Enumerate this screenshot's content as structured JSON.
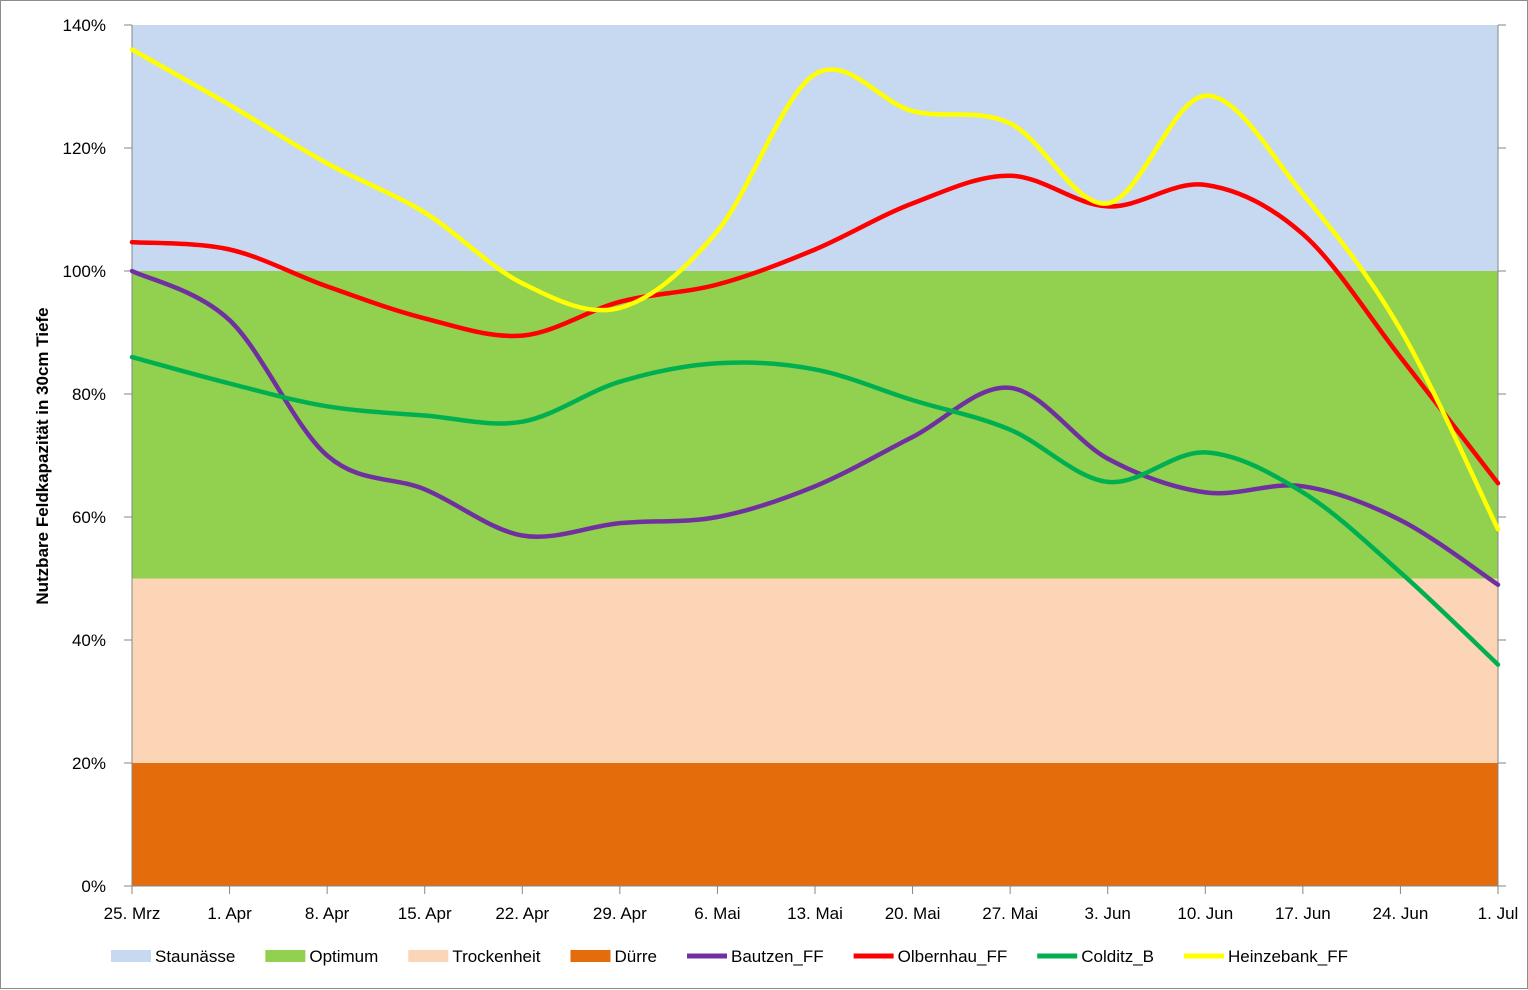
{
  "chart_data": {
    "type": "line",
    "ylabel": "Nutzbare Feldkapazität in 30cm Tiefe",
    "xlabel": "",
    "ylim": [
      0,
      140
    ],
    "y_ticks": [
      0,
      20,
      40,
      60,
      80,
      100,
      120,
      140
    ],
    "y_tick_labels": [
      "0%",
      "20%",
      "40%",
      "60%",
      "80%",
      "100%",
      "120%",
      "140%"
    ],
    "x_range": [
      "2014-03-25",
      "2014-07-01"
    ],
    "x_ticks": [
      "2014-03-25",
      "2014-04-01",
      "2014-04-08",
      "2014-04-15",
      "2014-04-22",
      "2014-04-29",
      "2014-05-06",
      "2014-05-13",
      "2014-05-20",
      "2014-05-27",
      "2014-06-03",
      "2014-06-10",
      "2014-06-17",
      "2014-06-24",
      "2014-07-01"
    ],
    "x_tick_labels": [
      "25. Mrz",
      "1. Apr",
      "8. Apr",
      "15. Apr",
      "22. Apr",
      "29. Apr",
      "6. Mai",
      "13. Mai",
      "20. Mai",
      "27. Mai",
      "3. Jun",
      "10. Jun",
      "17. Jun",
      "24. Jun",
      "1. Jul"
    ],
    "grid": false,
    "legend_position": "bottom",
    "bands": [
      {
        "name": "Staunässe",
        "from": 100,
        "to": 140,
        "color": "#c6d9f1"
      },
      {
        "name": "Optimum",
        "from": 50,
        "to": 100,
        "color": "#92d050"
      },
      {
        "name": "Trockenheit",
        "from": 20,
        "to": 50,
        "color": "#fbd5b5"
      },
      {
        "name": "Dürre",
        "from": 0,
        "to": 20,
        "color": "#e46c0a"
      }
    ],
    "series": [
      {
        "name": "Bautzen_FF",
        "color": "#7030a0",
        "x": [
          "2014-03-25",
          "2014-04-01",
          "2014-04-08",
          "2014-04-15",
          "2014-04-22",
          "2014-04-29",
          "2014-05-06",
          "2014-05-13",
          "2014-05-20",
          "2014-05-27",
          "2014-06-03",
          "2014-06-10",
          "2014-06-17",
          "2014-06-24",
          "2014-07-01"
        ],
        "values": [
          100,
          92,
          70,
          64.5,
          57,
          59,
          60,
          65,
          73,
          81,
          69.5,
          64,
          65,
          59.5,
          49
        ]
      },
      {
        "name": "Olbernhau_FF",
        "color": "#ff0000",
        "x": [
          "2014-03-25",
          "2014-04-01",
          "2014-04-08",
          "2014-04-15",
          "2014-04-22",
          "2014-04-29",
          "2014-05-06",
          "2014-05-13",
          "2014-05-20",
          "2014-05-27",
          "2014-06-03",
          "2014-06-10",
          "2014-06-17",
          "2014-06-24",
          "2014-07-01"
        ],
        "values": [
          104.7,
          103.5,
          97.5,
          92.3,
          89.5,
          95,
          97.8,
          103.5,
          111,
          115.5,
          110.5,
          114,
          106,
          86,
          65.5
        ]
      },
      {
        "name": "Colditz_B",
        "color": "#00b050",
        "x": [
          "2014-03-25",
          "2014-04-01",
          "2014-04-08",
          "2014-04-15",
          "2014-04-22",
          "2014-04-29",
          "2014-05-06",
          "2014-05-13",
          "2014-05-20",
          "2014-05-27",
          "2014-06-03",
          "2014-06-10",
          "2014-06-17",
          "2014-06-24",
          "2014-07-01"
        ],
        "values": [
          86,
          81.7,
          78,
          76.5,
          75.5,
          82,
          85,
          84,
          79,
          74.2,
          65.7,
          70.5,
          64,
          51,
          36
        ]
      },
      {
        "name": "Heinzebank_FF",
        "color": "#ffff00",
        "x": [
          "2014-03-25",
          "2014-04-01",
          "2014-04-08",
          "2014-04-15",
          "2014-04-22",
          "2014-04-29",
          "2014-05-06",
          "2014-05-13",
          "2014-05-20",
          "2014-05-27",
          "2014-06-03",
          "2014-06-10",
          "2014-06-17",
          "2014-06-24",
          "2014-07-01"
        ],
        "values": [
          136,
          127,
          117.5,
          109.5,
          98,
          94,
          106.5,
          132,
          126,
          124,
          111,
          128.5,
          112.5,
          90.5,
          58
        ]
      }
    ]
  }
}
